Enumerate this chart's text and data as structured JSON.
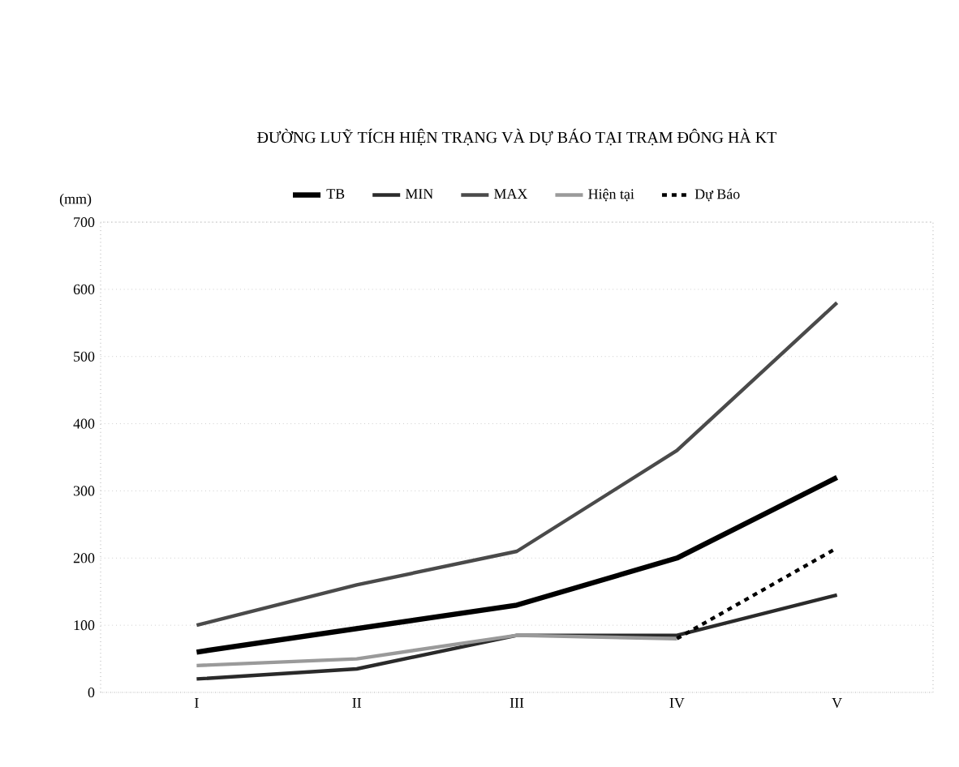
{
  "chart_data": {
    "type": "line",
    "title": "ĐƯỜNG LUỸ TÍCH HIỆN TRẠNG VÀ DỰ BÁO TẠI TRẠM ĐÔNG HÀ KT",
    "ylabel": "(mm)",
    "categories": [
      "I",
      "II",
      "III",
      "IV",
      "V"
    ],
    "series": [
      {
        "name": "TB",
        "color": "#000000",
        "values": [
          60,
          95,
          130,
          200,
          320
        ]
      },
      {
        "name": "MIN",
        "color": "#2a2a2a",
        "values": [
          20,
          35,
          85,
          85,
          145
        ]
      },
      {
        "name": "MAX",
        "color": "#4a4a4a",
        "values": [
          100,
          160,
          210,
          360,
          580
        ]
      },
      {
        "name": "Hiện tại",
        "color": "#9a9a9a",
        "values": [
          40,
          50,
          85,
          80,
          null
        ]
      },
      {
        "name": "Dự Báo",
        "color": "#000000",
        "line_style": "dashed",
        "values": [
          null,
          null,
          null,
          80,
          215
        ]
      }
    ],
    "ylim": [
      0,
      700
    ],
    "yticks": [
      0,
      100,
      200,
      300,
      400,
      500,
      600,
      700
    ],
    "grid": "y",
    "legend": "top",
    "marker": "none",
    "line_style": "solid"
  }
}
